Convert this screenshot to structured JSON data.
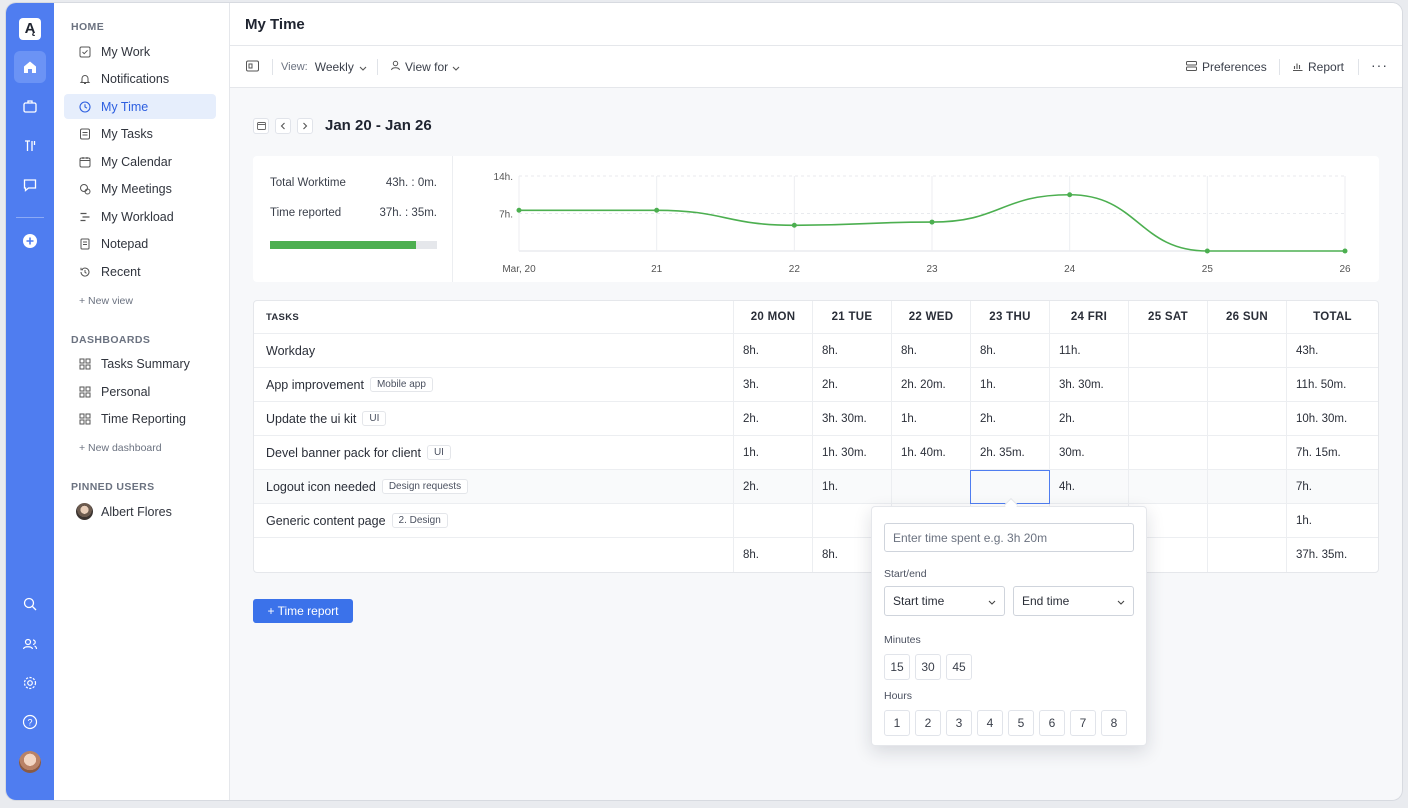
{
  "app": {
    "page_title": "My Time"
  },
  "rail": {
    "logo": "Ą"
  },
  "sidebar": {
    "home_title": "HOME",
    "home_items": [
      {
        "label": "My Work"
      },
      {
        "label": "Notifications"
      },
      {
        "label": "My Time"
      },
      {
        "label": "My Tasks"
      },
      {
        "label": "My Calendar"
      },
      {
        "label": "My Meetings"
      },
      {
        "label": "My Workload"
      },
      {
        "label": "Notepad"
      },
      {
        "label": "Recent"
      }
    ],
    "new_view": "+ New view",
    "dashboards_title": "DASHBOARDS",
    "dashboard_items": [
      {
        "label": "Tasks Summary"
      },
      {
        "label": "Personal"
      },
      {
        "label": "Time Reporting"
      }
    ],
    "new_dashboard": "+ New dashboard",
    "pinned_title": "PINNED USERS",
    "pinned_user": "Albert Flores"
  },
  "toolbar": {
    "view_label": "View:",
    "view_value": "Weekly",
    "view_for": "View for",
    "preferences": "Preferences",
    "report": "Report",
    "more": "···"
  },
  "range": {
    "title": "Jan 20 - Jan 26"
  },
  "summary": {
    "total_label": "Total Worktime",
    "total_value": "43h. : 0m.",
    "reported_label": "Time reported",
    "reported_value": "37h. : 35m.",
    "progress_fraction": 0.874
  },
  "chart_data": {
    "type": "line",
    "x": [
      "Mar, 20",
      "21",
      "22",
      "23",
      "24",
      "25",
      "26"
    ],
    "series": [
      {
        "values": [
          7.6,
          7.6,
          4.8,
          5.4,
          10.5,
          0,
          0
        ]
      }
    ],
    "y_ticks": [
      "14h.",
      "7h."
    ],
    "ylim": [
      0,
      14
    ],
    "grid": true,
    "colors": {
      "line": "#4caf50"
    }
  },
  "table": {
    "columns": [
      "TASKS",
      "20 MON",
      "21 TUE",
      "22 WED",
      "23 THU",
      "24 FRI",
      "25 SAT",
      "26 SUN",
      "TOTAL"
    ],
    "rows": [
      {
        "task": "Workday",
        "tag": "",
        "cells": [
          "8h.",
          "8h.",
          "8h.",
          "8h.",
          "11h.",
          "",
          ""
        ],
        "total": "43h."
      },
      {
        "task": "App improvement",
        "tag": "Mobile app",
        "cells": [
          "3h.",
          "2h.",
          "2h. 20m.",
          "1h.",
          "3h. 30m.",
          "",
          ""
        ],
        "total": "11h. 50m."
      },
      {
        "task": "Update the ui kit",
        "tag": "UI",
        "cells": [
          "2h.",
          "3h. 30m.",
          "1h.",
          "2h.",
          "2h.",
          "",
          ""
        ],
        "total": "10h. 30m."
      },
      {
        "task": "Devel banner pack for client",
        "tag": "UI",
        "cells": [
          "1h.",
          "1h. 30m.",
          "1h. 40m.",
          "2h. 35m.",
          "30m.",
          "",
          ""
        ],
        "total": "7h. 15m."
      },
      {
        "task": "Logout icon needed",
        "tag": "Design requests",
        "cells": [
          "2h.",
          "1h.",
          "",
          "",
          "4h.",
          "",
          ""
        ],
        "total": "7h."
      },
      {
        "task": "Generic content page",
        "tag": "2. Design",
        "cells": [
          "",
          "",
          "",
          "",
          "",
          "",
          ""
        ],
        "total": "1h."
      },
      {
        "task": "",
        "tag": "",
        "cells": [
          "8h.",
          "8h.",
          "",
          "",
          "",
          "",
          ""
        ],
        "total": "37h. 35m."
      }
    ]
  },
  "time_report_button": "+ Time report",
  "popover": {
    "input_placeholder": "Enter time spent e.g. 3h 20m",
    "startend_label": "Start/end",
    "start_select": "Start time",
    "end_select": "End time",
    "minutes_label": "Minutes",
    "minutes": [
      "15",
      "30",
      "45"
    ],
    "hours_label": "Hours",
    "hours": [
      "1",
      "2",
      "3",
      "4",
      "5",
      "6",
      "7",
      "8"
    ]
  }
}
